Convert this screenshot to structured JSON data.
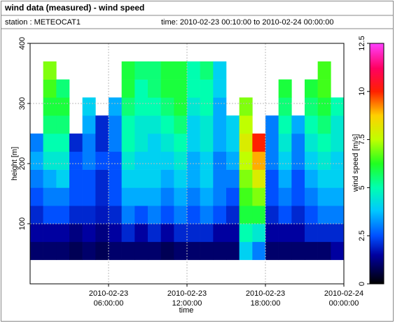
{
  "chart_data": {
    "type": "heatmap",
    "title": "wind data (measured) - wind speed",
    "station": "station : METEOCAT1",
    "period": "time: 2010-02-23 00:10:00 to 2010-02-24 00:00:00",
    "x_label": "time",
    "y_label": "height [m]",
    "colorbar_label": "wind speed [m/s]",
    "x": [
      "2010-02-23T00:00:00",
      "2010-02-23T01:00:00",
      "2010-02-23T02:00:00",
      "2010-02-23T03:00:00",
      "2010-02-23T04:00:00",
      "2010-02-23T05:00:00",
      "2010-02-23T06:00:00",
      "2010-02-23T07:00:00",
      "2010-02-23T08:00:00",
      "2010-02-23T09:00:00",
      "2010-02-23T10:00:00",
      "2010-02-23T11:00:00",
      "2010-02-23T12:00:00",
      "2010-02-23T13:00:00",
      "2010-02-23T14:00:00",
      "2010-02-23T15:00:00",
      "2010-02-23T16:00:00",
      "2010-02-23T17:00:00",
      "2010-02-23T18:00:00",
      "2010-02-23T19:00:00",
      "2010-02-23T20:00:00",
      "2010-02-23T21:00:00",
      "2010-02-23T22:00:00",
      "2010-02-23T23:00:00"
    ],
    "y_bins": [
      40,
      70,
      100,
      130,
      160,
      190,
      220,
      250,
      280,
      310,
      340,
      370
    ],
    "values": [
      [
        1,
        1.5,
        2,
        2.5,
        3,
        3.5,
        3,
        null,
        null,
        null,
        null
      ],
      [
        1,
        1.5,
        2.5,
        3,
        3.5,
        4.5,
        5,
        5.5,
        6,
        6.5,
        7
      ],
      [
        1,
        1.5,
        2.5,
        3,
        4,
        4.5,
        5,
        5.5,
        6,
        5.5,
        null
      ],
      [
        0.8,
        1.2,
        2,
        2.5,
        2.5,
        2.5,
        2,
        null,
        null,
        null,
        null
      ],
      [
        1,
        1.5,
        2,
        2.5,
        2.5,
        3,
        3,
        3.5,
        4,
        null,
        null
      ],
      [
        0.8,
        1.2,
        1.8,
        2,
        2,
        2.5,
        2,
        2,
        null,
        null,
        null
      ],
      [
        1,
        1.5,
        2,
        2.5,
        2.5,
        2.5,
        3,
        3,
        3.5,
        null,
        null
      ],
      [
        1,
        2,
        3,
        3.5,
        4,
        4.5,
        5,
        5,
        5.5,
        6,
        6
      ],
      [
        1,
        1.5,
        2.5,
        3.5,
        4,
        4,
        4.5,
        4.5,
        5,
        5,
        5.5
      ],
      [
        1,
        2,
        3,
        3.5,
        4,
        4,
        4,
        4.5,
        5,
        5.5,
        5.5
      ],
      [
        0.8,
        1.5,
        2.5,
        3,
        3.5,
        4,
        4.5,
        5,
        5.5,
        6,
        6
      ],
      [
        1,
        2,
        3,
        3.5,
        4,
        4.5,
        5,
        5.5,
        6,
        6,
        6
      ],
      [
        1,
        2,
        2.5,
        3,
        3.5,
        3.5,
        4,
        4,
        4.5,
        5,
        5
      ],
      [
        1,
        2,
        3,
        3.5,
        4,
        4,
        4.5,
        4.5,
        5,
        5,
        5.5
      ],
      [
        1,
        1.5,
        2.5,
        3,
        3,
        3,
        3.5,
        3.5,
        3.5,
        4,
        4
      ],
      [
        1,
        1.5,
        2,
        2.5,
        3,
        3.5,
        4,
        4,
        null,
        null,
        null
      ],
      [
        4,
        5,
        6,
        6.5,
        7,
        7.5,
        8,
        7.5,
        7,
        null,
        null
      ],
      [
        3,
        4.5,
        6,
        7,
        8,
        9,
        10,
        null,
        null,
        null,
        null
      ],
      [
        1,
        1.5,
        2,
        2.5,
        2.5,
        3,
        3,
        3,
        null,
        null,
        null
      ],
      [
        1,
        1.5,
        2.5,
        3,
        3.5,
        4,
        4.5,
        5,
        5.5,
        6,
        null
      ],
      [
        1,
        1.5,
        2,
        2.5,
        2.5,
        3,
        3,
        3.5,
        null,
        null,
        null
      ],
      [
        1,
        2,
        2.5,
        3,
        3.5,
        4,
        4.5,
        5,
        5.5,
        6,
        null
      ],
      [
        1,
        2,
        3,
        3.5,
        4,
        4.5,
        5,
        5.5,
        6,
        6.5,
        6.5
      ],
      [
        1.5,
        2,
        3,
        3.5,
        4,
        4,
        4.5,
        4.5,
        5,
        null,
        null
      ]
    ],
    "xlim": [
      "2010-02-23T00:00:00",
      "2010-02-24T00:00:00"
    ],
    "xticks": [
      {
        "value": "2010-02-23T06:00:00",
        "label": [
          "2010-02-23",
          "06:00:00"
        ]
      },
      {
        "value": "2010-02-23T12:00:00",
        "label": [
          "2010-02-23",
          "12:00:00"
        ]
      },
      {
        "value": "2010-02-23T18:00:00",
        "label": [
          "2010-02-23",
          "18:00:00"
        ]
      },
      {
        "value": "2010-02-24T00:00:00",
        "label": [
          "2010-02-24",
          "00:00:00"
        ]
      }
    ],
    "ylim": [
      0,
      400
    ],
    "yticks": [
      100,
      200,
      300,
      400
    ],
    "clim": [
      0,
      12.5
    ],
    "cticks": [
      0,
      2.5,
      5,
      7.5,
      10,
      12.5
    ],
    "colormap": [
      {
        "value": 0,
        "color": "#000000"
      },
      {
        "value": 1.5,
        "color": "#0000a0"
      },
      {
        "value": 2.5,
        "color": "#0050ff"
      },
      {
        "value": 3.8,
        "color": "#00c8ff"
      },
      {
        "value": 5,
        "color": "#00ffb0"
      },
      {
        "value": 6.25,
        "color": "#20ff20"
      },
      {
        "value": 7.5,
        "color": "#c0ff00"
      },
      {
        "value": 8.75,
        "color": "#ffd000"
      },
      {
        "value": 10,
        "color": "#ff2000"
      },
      {
        "value": 11.2,
        "color": "#ff0060"
      },
      {
        "value": 12.5,
        "color": "#ff40ff"
      }
    ],
    "grid": true
  }
}
